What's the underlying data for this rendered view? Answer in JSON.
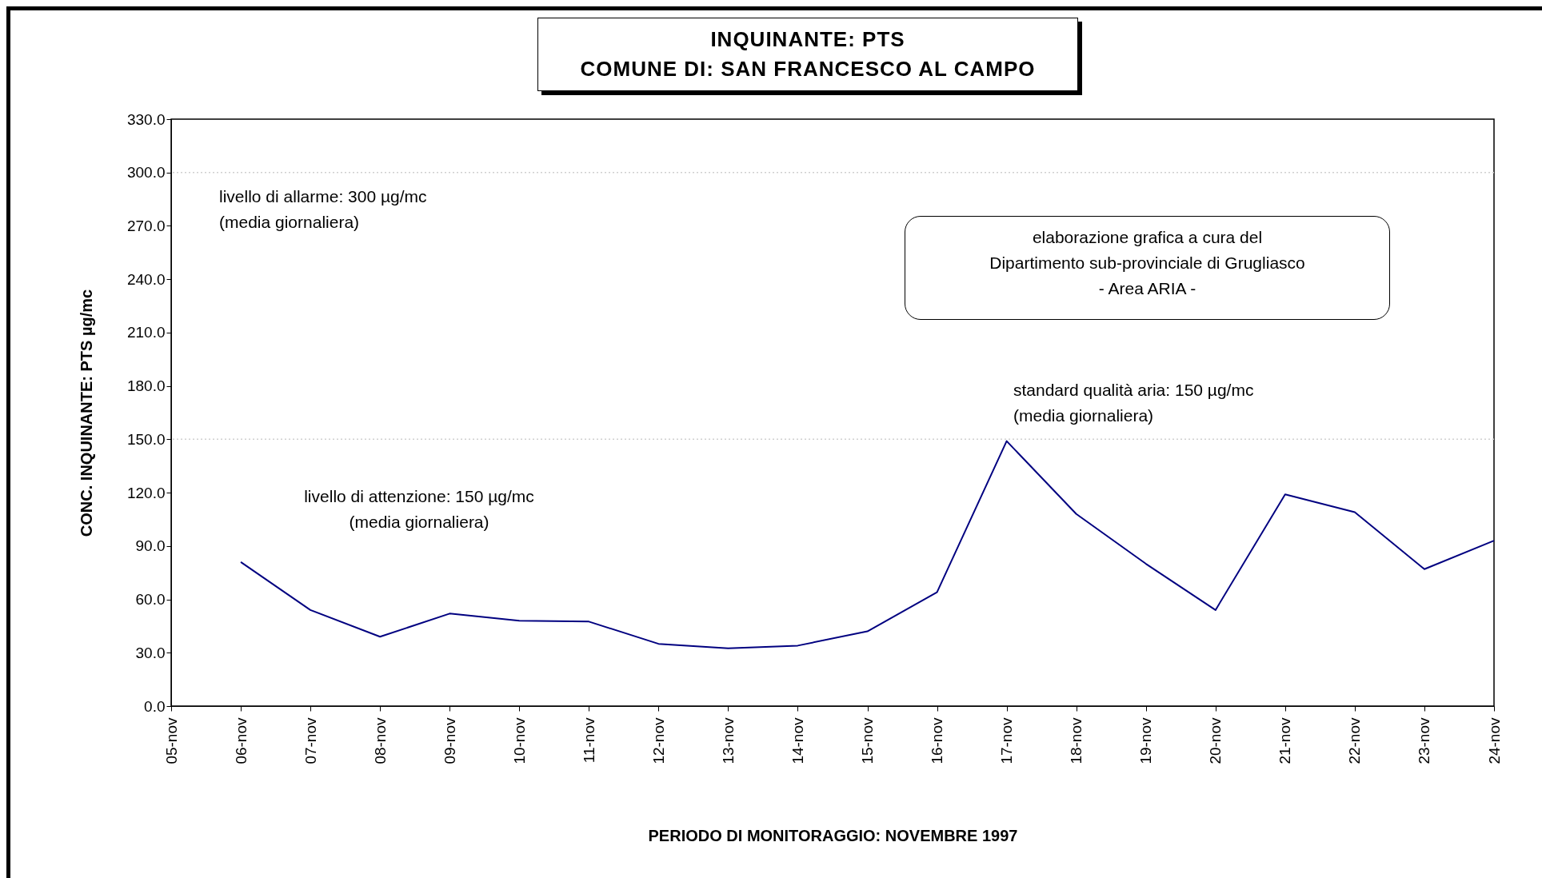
{
  "chart_data": {
    "type": "line",
    "title": "INQUINANTE: PTS\nCOMUNE DI: SAN FRANCESCO AL CAMPO",
    "xlabel": "PERIODO DI MONITORAGGIO: NOVEMBRE 1997",
    "ylabel": "CONC. INQUINANTE: PTS µg/mc",
    "categories": [
      "05-nov",
      "06-nov",
      "07-nov",
      "08-nov",
      "09-nov",
      "10-nov",
      "11-nov",
      "12-nov",
      "13-nov",
      "14-nov",
      "15-nov",
      "16-nov",
      "17-nov",
      "18-nov",
      "19-nov",
      "20-nov",
      "21-nov",
      "22-nov",
      "23-nov",
      "24-nov"
    ],
    "series": [
      {
        "color": "#000080",
        "values": [
          null,
          81,
          54,
          39,
          52,
          48,
          47.5,
          35,
          32.5,
          34,
          42,
          64,
          149,
          108,
          80,
          54,
          119,
          109,
          77,
          93
        ]
      }
    ],
    "ylim": [
      0,
      330
    ],
    "yticks": [
      {
        "value": 0,
        "label": "0.0"
      },
      {
        "value": 30,
        "label": "30.0"
      },
      {
        "value": 60,
        "label": "60.0"
      },
      {
        "value": 90,
        "label": "90.0"
      },
      {
        "value": 120,
        "label": "120.0"
      },
      {
        "value": 150,
        "label": "150.0"
      },
      {
        "value": 180,
        "label": "180.0"
      },
      {
        "value": 210,
        "label": "210.0"
      },
      {
        "value": 240,
        "label": "240.0"
      },
      {
        "value": 270,
        "label": "270.0"
      },
      {
        "value": 300,
        "label": "300.0"
      },
      {
        "value": 330,
        "label": "330.0"
      }
    ],
    "ref_lines": [
      {
        "axis": "y",
        "value": 300,
        "label": "livello di allarme: 300 µg/mc\n(media giornaliera)",
        "color": "#d0d0d0",
        "line_style": "dotted"
      },
      {
        "axis": "y",
        "value": 150,
        "label": "standard qualità aria: 150 µg/mc\n(media giornaliera)",
        "color": "#d0d0d0",
        "line_style": "dotted"
      }
    ],
    "annotations": [
      "livello di attenzione: 150 µg/mc\n(media giornaliera)",
      "elaborazione grafica a cura del\nDipartimento sub-provinciale di Grugliasco\n- Area ARIA -"
    ],
    "grid": false,
    "legend": false,
    "marker": "none",
    "line_style": "solid"
  }
}
